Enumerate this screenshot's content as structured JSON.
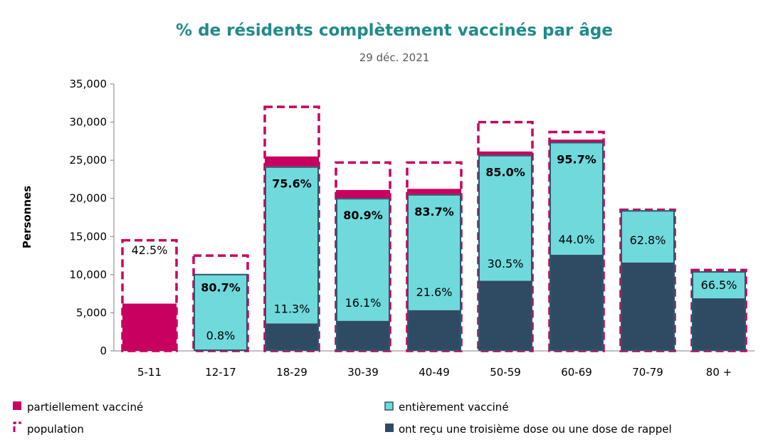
{
  "chart_data": {
    "type": "bar",
    "title": "% de résidents complètement vaccinés par âge",
    "subtitle": "29 déc. 2021",
    "ylabel": "Personnes",
    "xlabel": "",
    "ylim": [
      0,
      35000
    ],
    "yticks": [
      "0",
      "5,000",
      "10,000",
      "15,000",
      "20,000",
      "25,000",
      "30,000",
      "35,000"
    ],
    "ytick_values": [
      0,
      5000,
      10000,
      15000,
      20000,
      25000,
      30000,
      35000
    ],
    "categories": [
      "5-11",
      "12-17",
      "18-29",
      "30-39",
      "40-49",
      "50-59",
      "60-69",
      "70-79",
      "80 +"
    ],
    "series": [
      {
        "name": "ont reçu une troisième dose ou une dose de rappel",
        "values": [
          0,
          100,
          3600,
          3950,
          5350,
          9200,
          12600,
          11600,
          6900
        ]
      },
      {
        "name": "entièrement vaccinée",
        "values": [
          0,
          10000,
          20600,
          16100,
          15200,
          16500,
          14800,
          6850,
          3550
        ]
      },
      {
        "name": "partiellement vacciné",
        "values": [
          6200,
          0,
          1300,
          1050,
          700,
          450,
          300,
          0,
          0
        ]
      },
      {
        "name": "population",
        "values": [
          14500,
          12500,
          32000,
          24700,
          24700,
          30000,
          28700,
          18500,
          10600
        ]
      }
    ],
    "labels_fully": [
      "42.5%",
      "80.7%",
      "75.6%",
      "80.9%",
      "83.7%",
      "85.0%",
      "95.7%",
      "62.8%",
      "66.5%"
    ],
    "labels_booster": [
      "",
      "0.8%",
      "11.3%",
      "16.1%",
      "21.6%",
      "30.5%",
      "44.0%",
      "",
      ""
    ],
    "legend": {
      "partial": "partiellement vacciné",
      "fully": "entièrement vacciné",
      "population": "population",
      "booster": "ont reçu une troisième dose ou une dose de rappel"
    },
    "colors": {
      "partial": "#c8005f",
      "fully": "#6fd9dc",
      "booster": "#2f4b63",
      "population": "#c8005f",
      "fully_border": "#2b5a6b"
    }
  }
}
